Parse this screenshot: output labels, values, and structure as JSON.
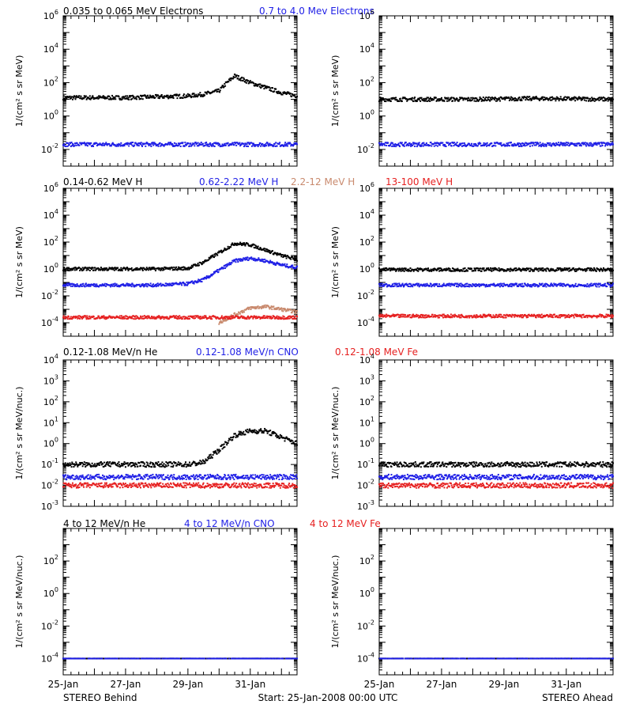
{
  "colors": {
    "black": "#000000",
    "blue": "#1f1fe6",
    "tan": "#c98a6e",
    "red": "#e62020"
  },
  "footer": {
    "left": "STEREO Behind",
    "center": "Start: 25-Jan-2008 00:00 UTC",
    "right": "STEREO Ahead"
  },
  "x_ticks": [
    "25-Jan",
    "27-Jan",
    "29-Jan",
    "31-Jan"
  ],
  "rows": [
    {
      "legend": [
        {
          "text": "0.035 to 0.065 MeV Electrons",
          "color": "black"
        },
        {
          "text": "0.7 to 4.0 Mev Electrons",
          "color": "blue"
        }
      ]
    },
    {
      "legend": [
        {
          "text": "0.14-0.62 MeV H",
          "color": "black"
        },
        {
          "text": "0.62-2.22 MeV H",
          "color": "blue"
        },
        {
          "text": "2.2-12 MeV H",
          "color": "tan"
        },
        {
          "text": "13-100 MeV H",
          "color": "red"
        }
      ]
    },
    {
      "legend": [
        {
          "text": "0.12-1.08 MeV/n He",
          "color": "black"
        },
        {
          "text": "0.12-1.08 MeV/n CNO",
          "color": "blue"
        },
        {
          "text": "0.12-1.08 MeV Fe",
          "color": "red"
        }
      ]
    },
    {
      "legend": [
        {
          "text": "4 to 12 MeV/n He",
          "color": "black"
        },
        {
          "text": "4 to 12 MeV/n CNO",
          "color": "blue"
        },
        {
          "text": "4 to 12 MeV Fe",
          "color": "red"
        }
      ]
    }
  ],
  "chart_data": [
    {
      "type": "scatter",
      "row": 0,
      "side": "behind",
      "ylabel": "1/(cm² s sr MeV)",
      "yscale": "log",
      "xlim": [
        0,
        7.5
      ],
      "ylim_exp": [
        -3,
        6
      ],
      "y_tick_exps": [
        -2,
        0,
        2,
        4,
        6
      ],
      "series": [
        {
          "color": "black",
          "x": [
            0,
            2,
            4,
            4.5,
            5,
            5.2,
            5.5,
            6,
            6.5,
            7,
            7.5
          ],
          "log10_y": [
            1.1,
            1.1,
            1.2,
            1.3,
            1.5,
            1.9,
            2.4,
            2.0,
            1.7,
            1.4,
            1.2
          ]
        },
        {
          "color": "blue",
          "x": [
            0,
            3,
            7.5
          ],
          "log10_y": [
            -1.7,
            -1.7,
            -1.7
          ]
        }
      ]
    },
    {
      "type": "scatter",
      "row": 0,
      "side": "ahead",
      "ylabel": "1/(cm² s sr MeV)",
      "yscale": "log",
      "xlim": [
        0,
        7.5
      ],
      "ylim_exp": [
        -3,
        6
      ],
      "y_tick_exps": [
        -2,
        0,
        2,
        4,
        6
      ],
      "series": [
        {
          "color": "black",
          "x": [
            0,
            3,
            5,
            7.5
          ],
          "log10_y": [
            1.0,
            1.0,
            1.05,
            1.0
          ]
        },
        {
          "color": "blue",
          "x": [
            0,
            3,
            7.5
          ],
          "log10_y": [
            -1.7,
            -1.7,
            -1.7
          ]
        }
      ]
    },
    {
      "type": "scatter",
      "row": 1,
      "side": "behind",
      "ylabel": "1/(cm² s sr MeV)",
      "yscale": "log",
      "xlim": [
        0,
        7.5
      ],
      "ylim_exp": [
        -5,
        6
      ],
      "y_tick_exps": [
        -4,
        -2,
        0,
        2,
        4,
        6
      ],
      "series": [
        {
          "color": "black",
          "x": [
            0,
            3,
            4,
            4.5,
            5,
            5.5,
            6,
            6.5,
            7,
            7.5
          ],
          "log10_y": [
            0,
            0,
            0.05,
            0.5,
            1.2,
            1.9,
            1.8,
            1.4,
            1.0,
            0.7
          ]
        },
        {
          "color": "blue",
          "x": [
            0,
            3,
            4,
            4.5,
            5,
            5.5,
            6,
            6.5,
            7,
            7.5
          ],
          "log10_y": [
            -1.2,
            -1.2,
            -1.1,
            -0.8,
            -0.1,
            0.6,
            0.8,
            0.6,
            0.3,
            0.1
          ]
        },
        {
          "color": "tan",
          "x": [
            5,
            5.5,
            6,
            6.5,
            7,
            7.5
          ],
          "log10_y": [
            -4.0,
            -3.4,
            -2.9,
            -2.8,
            -3.0,
            -3.2
          ]
        },
        {
          "color": "red",
          "x": [
            0,
            3,
            7.5
          ],
          "log10_y": [
            -3.6,
            -3.6,
            -3.6
          ]
        }
      ]
    },
    {
      "type": "scatter",
      "row": 1,
      "side": "ahead",
      "ylabel": "1/(cm² s sr MeV)",
      "yscale": "log",
      "xlim": [
        0,
        7.5
      ],
      "ylim_exp": [
        -5,
        6
      ],
      "y_tick_exps": [
        -4,
        -2,
        0,
        2,
        4,
        6
      ],
      "series": [
        {
          "color": "black",
          "x": [
            0,
            3,
            7.5
          ],
          "log10_y": [
            -0.05,
            -0.05,
            -0.05
          ]
        },
        {
          "color": "blue",
          "x": [
            0,
            3,
            7.5
          ],
          "log10_y": [
            -1.2,
            -1.2,
            -1.2
          ]
        },
        {
          "color": "red",
          "x": [
            0,
            3,
            7.5
          ],
          "log10_y": [
            -3.5,
            -3.5,
            -3.5
          ]
        }
      ]
    },
    {
      "type": "scatter",
      "row": 2,
      "side": "behind",
      "ylabel": "1/(cm² s sr MeV/nuc.)",
      "yscale": "log",
      "xlim": [
        0,
        7.5
      ],
      "ylim_exp": [
        -3,
        4
      ],
      "y_tick_exps": [
        -3,
        -2,
        -1,
        0,
        1,
        2,
        3,
        4
      ],
      "series": [
        {
          "color": "black",
          "x": [
            0,
            4,
            4.5,
            5,
            5.5,
            6,
            6.5,
            7,
            7.5
          ],
          "log10_y": [
            -1,
            -1,
            -0.9,
            -0.3,
            0.4,
            0.6,
            0.6,
            0.3,
            0.0
          ]
        },
        {
          "color": "blue",
          "x": [
            0,
            3,
            7.5
          ],
          "log10_y": [
            -1.6,
            -1.6,
            -1.6
          ]
        },
        {
          "color": "red",
          "x": [
            0,
            3,
            7.5
          ],
          "log10_y": [
            -2.0,
            -2.0,
            -2.0
          ]
        }
      ]
    },
    {
      "type": "scatter",
      "row": 2,
      "side": "ahead",
      "ylabel": "1/(cm² s sr MeV/nuc.)",
      "yscale": "log",
      "xlim": [
        0,
        7.5
      ],
      "ylim_exp": [
        -3,
        4
      ],
      "y_tick_exps": [
        -3,
        -2,
        -1,
        0,
        1,
        2,
        3,
        4
      ],
      "series": [
        {
          "color": "black",
          "x": [
            0,
            3,
            7.5
          ],
          "log10_y": [
            -1.0,
            -1.0,
            -1.0
          ]
        },
        {
          "color": "blue",
          "x": [
            0,
            3,
            7.5
          ],
          "log10_y": [
            -1.6,
            -1.6,
            -1.6
          ]
        },
        {
          "color": "red",
          "x": [
            0,
            3,
            7.5
          ],
          "log10_y": [
            -2.0,
            -2.0,
            -2.0
          ]
        }
      ]
    },
    {
      "type": "scatter",
      "row": 3,
      "side": "behind",
      "ylabel": "1/(cm² s sr MeV/nuc.)",
      "yscale": "log",
      "xlim": [
        0,
        7.5
      ],
      "ylim_exp": [
        -5,
        4
      ],
      "y_tick_exps": [
        -4,
        -2,
        0,
        2
      ],
      "series": [
        {
          "color": "black",
          "x": [
            0,
            3,
            7.5
          ],
          "log10_y": [
            -4.0,
            -4.0,
            -4.0
          ]
        },
        {
          "color": "blue",
          "x": [
            0,
            3,
            7.5
          ],
          "log10_y": [
            -4.0,
            -4.0,
            -4.0
          ]
        }
      ]
    },
    {
      "type": "scatter",
      "row": 3,
      "side": "ahead",
      "ylabel": "1/(cm² s sr MeV/nuc.)",
      "yscale": "log",
      "xlim": [
        0,
        7.5
      ],
      "ylim_exp": [
        -5,
        4
      ],
      "y_tick_exps": [
        -4,
        -2,
        0,
        2
      ],
      "series": [
        {
          "color": "black",
          "x": [
            0,
            3,
            7.5
          ],
          "log10_y": [
            -4.0,
            -4.0,
            -4.0
          ]
        },
        {
          "color": "blue",
          "x": [
            0,
            3,
            7.5
          ],
          "log10_y": [
            -4.0,
            -4.0,
            -4.0
          ]
        }
      ]
    }
  ]
}
